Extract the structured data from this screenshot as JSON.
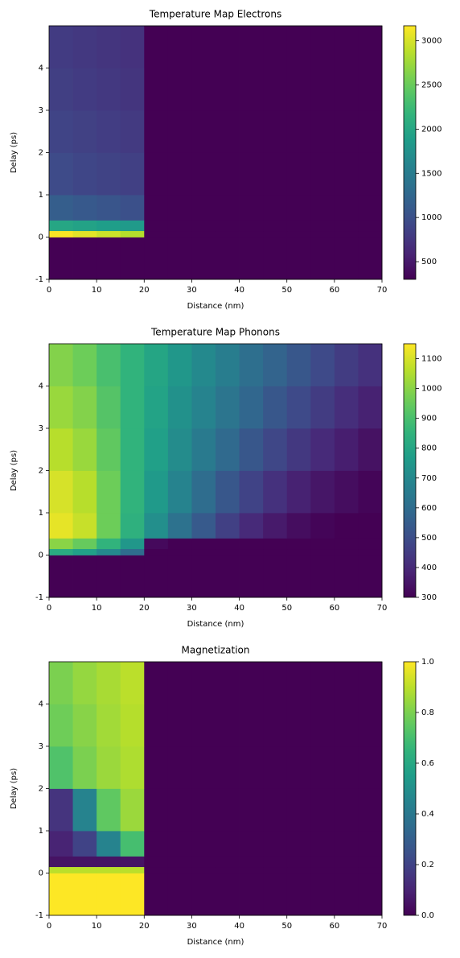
{
  "chart_data": [
    {
      "type": "heatmap",
      "title": "Temperature Map Electrons",
      "xlabel": "Distance (nm)",
      "ylabel": "Delay (ps)",
      "colormap": "viridis",
      "xlim": [
        0,
        70
      ],
      "ylim": [
        -1,
        5
      ],
      "xticks": [
        0,
        10,
        20,
        30,
        40,
        50,
        60,
        70
      ],
      "yticks": [
        -1,
        0,
        1,
        2,
        3,
        4
      ],
      "x_edges": [
        0,
        5,
        10,
        15,
        20,
        25,
        30,
        35,
        40,
        45,
        50,
        55,
        60,
        65,
        70
      ],
      "y_edges": [
        -1,
        0,
        0.15,
        0.4,
        1,
        2,
        3,
        4,
        5
      ],
      "zlim": [
        300,
        3170
      ],
      "cticks": [
        500,
        1000,
        1500,
        2000,
        2500,
        3000
      ],
      "z": [
        [
          300,
          300,
          300,
          300,
          300,
          300,
          300,
          300,
          300,
          300,
          300,
          300,
          300,
          300
        ],
        [
          3150,
          3050,
          2950,
          2850,
          300,
          300,
          300,
          300,
          300,
          300,
          300,
          300,
          300,
          300
        ],
        [
          2000,
          1950,
          1900,
          1850,
          300,
          300,
          300,
          300,
          300,
          300,
          300,
          300,
          300,
          300
        ],
        [
          1150,
          1100,
          1050,
          1000,
          300,
          300,
          300,
          300,
          300,
          300,
          300,
          300,
          300,
          300
        ],
        [
          950,
          900,
          870,
          840,
          300,
          300,
          300,
          300,
          300,
          300,
          300,
          300,
          300,
          300
        ],
        [
          880,
          850,
          820,
          790,
          300,
          300,
          300,
          300,
          300,
          300,
          300,
          300,
          300,
          300
        ],
        [
          830,
          800,
          770,
          740,
          300,
          300,
          300,
          300,
          300,
          300,
          300,
          300,
          300,
          300
        ],
        [
          800,
          770,
          740,
          710,
          300,
          300,
          300,
          300,
          300,
          300,
          300,
          300,
          300,
          300
        ]
      ]
    },
    {
      "type": "heatmap",
      "title": "Temperature Map Phonons",
      "xlabel": "Distance (nm)",
      "ylabel": "Delay (ps)",
      "colormap": "viridis",
      "xlim": [
        0,
        70
      ],
      "ylim": [
        -1,
        5
      ],
      "xticks": [
        0,
        10,
        20,
        30,
        40,
        50,
        60,
        70
      ],
      "yticks": [
        -1,
        0,
        1,
        2,
        3,
        4
      ],
      "x_edges": [
        0,
        5,
        10,
        15,
        20,
        25,
        30,
        35,
        40,
        45,
        50,
        55,
        60,
        65,
        70
      ],
      "y_edges": [
        -1,
        0,
        0.15,
        0.4,
        1,
        2,
        3,
        4,
        5
      ],
      "zlim": [
        300,
        1150
      ],
      "cticks": [
        300,
        400,
        500,
        600,
        700,
        800,
        900,
        1000,
        1100
      ],
      "z": [
        [
          300,
          300,
          300,
          300,
          300,
          300,
          300,
          300,
          300,
          300,
          300,
          300,
          300,
          300
        ],
        [
          820,
          780,
          700,
          600,
          300,
          300,
          300,
          300,
          300,
          300,
          300,
          300,
          300,
          300
        ],
        [
          1000,
          950,
          850,
          750,
          320,
          300,
          300,
          300,
          300,
          300,
          300,
          300,
          300,
          300
        ],
        [
          1120,
          1080,
          960,
          840,
          720,
          620,
          540,
          460,
          400,
          360,
          330,
          310,
          300,
          300
        ],
        [
          1100,
          1060,
          960,
          850,
          760,
          680,
          600,
          530,
          470,
          420,
          380,
          350,
          330,
          310
        ],
        [
          1060,
          1020,
          940,
          850,
          780,
          710,
          650,
          590,
          530,
          480,
          440,
          400,
          370,
          340
        ],
        [
          1020,
          990,
          920,
          850,
          790,
          730,
          680,
          630,
          580,
          530,
          490,
          450,
          410,
          380
        ],
        [
          990,
          960,
          900,
          850,
          800,
          750,
          700,
          660,
          610,
          570,
          530,
          490,
          450,
          420
        ]
      ]
    },
    {
      "type": "heatmap",
      "title": "Magnetization",
      "xlabel": "Distance (nm)",
      "ylabel": "Delay (ps)",
      "colormap": "viridis",
      "xlim": [
        0,
        70
      ],
      "ylim": [
        -1,
        5
      ],
      "xticks": [
        0,
        10,
        20,
        30,
        40,
        50,
        60,
        70
      ],
      "yticks": [
        -1,
        0,
        1,
        2,
        3,
        4
      ],
      "x_edges": [
        0,
        5,
        10,
        15,
        20,
        25,
        30,
        35,
        40,
        45,
        50,
        55,
        60,
        65,
        70
      ],
      "y_edges": [
        -1,
        0,
        0.15,
        0.4,
        1,
        2,
        3,
        4,
        5
      ],
      "zlim": [
        0,
        1
      ],
      "cticks": [
        {
          "value": 0,
          "label": "0.0"
        },
        {
          "value": 0.2,
          "label": "0.2"
        },
        {
          "value": 0.4,
          "label": "0.4"
        },
        {
          "value": 0.6,
          "label": "0.6"
        },
        {
          "value": 0.8,
          "label": "0.8"
        },
        {
          "value": 1,
          "label": "1.0"
        }
      ],
      "z": [
        [
          1,
          1,
          1,
          1,
          0,
          0,
          0,
          0,
          0,
          0,
          0,
          0,
          0,
          0
        ],
        [
          0.9,
          0.9,
          0.9,
          0.9,
          0,
          0,
          0,
          0,
          0,
          0,
          0,
          0,
          0,
          0
        ],
        [
          0.05,
          0.05,
          0.05,
          0.05,
          0,
          0,
          0,
          0,
          0,
          0,
          0,
          0,
          0,
          0
        ],
        [
          0.1,
          0.2,
          0.45,
          0.7,
          0,
          0,
          0,
          0,
          0,
          0,
          0,
          0,
          0,
          0
        ],
        [
          0.15,
          0.45,
          0.75,
          0.85,
          0,
          0,
          0,
          0,
          0,
          0,
          0,
          0,
          0,
          0
        ],
        [
          0.72,
          0.8,
          0.85,
          0.88,
          0,
          0,
          0,
          0,
          0,
          0,
          0,
          0,
          0,
          0
        ],
        [
          0.78,
          0.82,
          0.86,
          0.89,
          0,
          0,
          0,
          0,
          0,
          0,
          0,
          0,
          0,
          0
        ],
        [
          0.8,
          0.84,
          0.87,
          0.9,
          0,
          0,
          0,
          0,
          0,
          0,
          0,
          0,
          0,
          0
        ]
      ]
    }
  ]
}
